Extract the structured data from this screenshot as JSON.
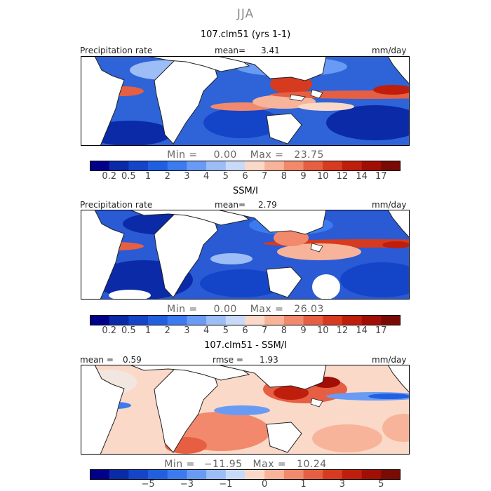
{
  "season": "JJA",
  "panels": [
    {
      "title": "107.clm51 (yrs 1-1)",
      "left_label": "Precipitation rate",
      "mid_label": "mean=",
      "mid_value": "3.41",
      "right_label": "mm/day",
      "min_label": "Min =",
      "min_value": "0.00",
      "max_label": "Max =",
      "max_value": "23.75"
    },
    {
      "title": "SSM/I",
      "left_label": "Precipitation rate",
      "mid_label": "mean=",
      "mid_value": "2.79",
      "right_label": "mm/day",
      "min_label": "Min =",
      "min_value": "0.00",
      "max_label": "Max =",
      "max_value": "26.03"
    },
    {
      "title": "107.clm51 - SSM/I",
      "left_label": "mean =",
      "left_value": "0.59",
      "mid_label": "rmse =",
      "mid_value": "1.93",
      "right_label": "mm/day",
      "min_label": "Min =",
      "min_value": "−11.95",
      "max_label": "Max =",
      "max_value": "10.24"
    }
  ],
  "chart_data": [
    {
      "type": "heatmap",
      "title": "107.clm51 (yrs 1-1)",
      "variable": "Precipitation rate",
      "units": "mm/day",
      "mean": 3.41,
      "min": 0.0,
      "max": 23.75,
      "colorbar_levels": [
        0.2,
        0.5,
        1,
        2,
        3,
        4,
        5,
        6,
        7,
        8,
        9,
        10,
        12,
        14,
        17
      ]
    },
    {
      "type": "heatmap",
      "title": "SSM/I",
      "variable": "Precipitation rate",
      "units": "mm/day",
      "mean": 2.79,
      "min": 0.0,
      "max": 26.03,
      "colorbar_levels": [
        0.2,
        0.5,
        1,
        2,
        3,
        4,
        5,
        6,
        7,
        8,
        9,
        10,
        12,
        14,
        17
      ]
    },
    {
      "type": "heatmap",
      "title": "107.clm51 - SSM/I",
      "units": "mm/day",
      "mean": 0.59,
      "rmse": 1.93,
      "min": -11.95,
      "max": 10.24,
      "colorbar_levels": [
        -5,
        -3,
        -1,
        0,
        1,
        3,
        5
      ]
    }
  ],
  "colorbar": {
    "abs_ticks": [
      "0.2",
      "0.5",
      "1",
      "2",
      "3",
      "4",
      "5",
      "6",
      "7",
      "8",
      "9",
      "10",
      "12",
      "14",
      "17"
    ],
    "diff_ticks": [
      "−5",
      "−3",
      "−1",
      "0",
      "1",
      "3",
      "5"
    ],
    "colors": [
      "#00008b",
      "#0a2aa8",
      "#1444c8",
      "#2060e0",
      "#3c7af0",
      "#6a9bf4",
      "#9cbdf5",
      "#c9daf8",
      "#fbd9c8",
      "#f7b49a",
      "#f2896c",
      "#e65f42",
      "#d63a1f",
      "#c01e0c",
      "#a00e06",
      "#7a0a04"
    ]
  }
}
